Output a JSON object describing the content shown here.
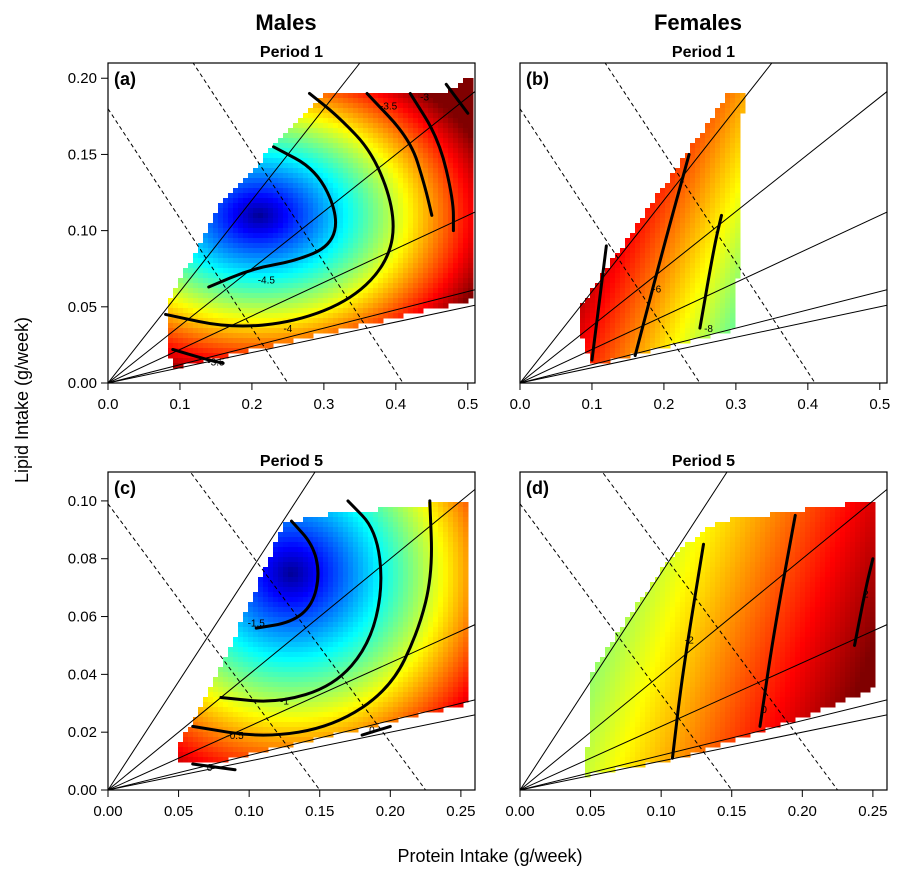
{
  "figure": {
    "column_titles": [
      "Males",
      "Females"
    ],
    "xlabel": "Protein Intake (g/week)",
    "ylabel": "Lipid Intake (g/week)"
  },
  "colors": {
    "scale_low": "#00007f",
    "scale_mid_1": "#0080ff",
    "scale_mid_2": "#7fff7f",
    "scale_mid_3": "#ff8000",
    "scale_high": "#7f0000"
  },
  "chart_data": [
    {
      "type": "heatmap",
      "id": "a",
      "letter": "(a)",
      "title": "Period 1",
      "column": "Males",
      "xlim": [
        0,
        0.51
      ],
      "ylim": [
        0,
        0.21
      ],
      "xticks": [
        "0.0",
        "0.1",
        "0.2",
        "0.3",
        "0.4",
        "0.5"
      ],
      "yticks": [
        "0.00",
        "0.05",
        "0.10",
        "0.15",
        "0.20"
      ],
      "show_xticks": true,
      "show_yticks": true,
      "ray_slopes": [
        0.6,
        0.375,
        0.22,
        0.12,
        0.1
      ],
      "iso_totals": [
        0.25,
        0.41
      ],
      "region": [
        [
          0.08,
          0.035
        ],
        [
          0.08,
          0.05
        ],
        [
          0.16,
          0.12
        ],
        [
          0.3,
          0.19
        ],
        [
          0.47,
          0.19
        ],
        [
          0.5,
          0.2
        ],
        [
          0.51,
          0.2
        ],
        [
          0.51,
          0.055
        ],
        [
          0.09,
          0.01
        ]
      ],
      "surface": {
        "center": [
          0.21,
          0.11
        ],
        "sx": 0.3,
        "sy": 0.1,
        "t_center": 0.02,
        "t_scale": 0.88
      },
      "contours": [
        {
          "label": "-4.5",
          "points": [
            [
              0.14,
              0.063
            ],
            [
              0.2,
              0.075
            ],
            [
              0.26,
              0.08
            ],
            [
              0.31,
              0.09
            ],
            [
              0.32,
              0.11
            ],
            [
              0.29,
              0.14
            ],
            [
              0.23,
              0.155
            ]
          ]
        },
        {
          "label": "-4",
          "points": [
            [
              0.08,
              0.045
            ],
            [
              0.17,
              0.036
            ],
            [
              0.26,
              0.04
            ],
            [
              0.34,
              0.055
            ],
            [
              0.39,
              0.08
            ],
            [
              0.4,
              0.11
            ],
            [
              0.37,
              0.15
            ],
            [
              0.32,
              0.175
            ],
            [
              0.28,
              0.19
            ]
          ]
        },
        {
          "label": "-3.5",
          "points": [
            [
              0.09,
              0.022
            ],
            [
              0.14,
              0.015
            ],
            [
              0.16,
              0.013
            ]
          ]
        },
        {
          "label": "-3.5",
          "points": [
            [
              0.36,
              0.19
            ],
            [
              0.42,
              0.16
            ],
            [
              0.44,
              0.13
            ],
            [
              0.45,
              0.11
            ]
          ]
        },
        {
          "label": "-3",
          "points": [
            [
              0.42,
              0.19
            ],
            [
              0.46,
              0.16
            ],
            [
              0.48,
              0.12
            ],
            [
              0.48,
              0.1
            ]
          ]
        },
        {
          "label": "",
          "points": [
            [
              0.47,
              0.196
            ],
            [
              0.5,
              0.177
            ]
          ]
        }
      ],
      "contour_labels": [
        {
          "text": "-4.5",
          "x": 0.22,
          "y": 0.068
        },
        {
          "text": "-4",
          "x": 0.25,
          "y": 0.036
        },
        {
          "text": "-3.5",
          "x": 0.15,
          "y": 0.014
        },
        {
          "text": "-3.5",
          "x": 0.39,
          "y": 0.182
        },
        {
          "text": "-3",
          "x": 0.44,
          "y": 0.188
        }
      ]
    },
    {
      "type": "heatmap",
      "id": "b",
      "letter": "(b)",
      "title": "Period 1",
      "column": "Females",
      "xlim": [
        0,
        0.51
      ],
      "ylim": [
        0,
        0.21
      ],
      "xticks": [
        "0.0",
        "0.1",
        "0.2",
        "0.3",
        "0.4",
        "0.5"
      ],
      "yticks": [
        "0.00",
        "0.05",
        "0.10",
        "0.15",
        "0.20"
      ],
      "show_xticks": true,
      "show_yticks": false,
      "ray_slopes": [
        0.6,
        0.375,
        0.22,
        0.12,
        0.1
      ],
      "iso_totals": [
        0.25,
        0.41
      ],
      "region": [
        [
          0.08,
          0.038
        ],
        [
          0.08,
          0.048
        ],
        [
          0.29,
          0.19
        ],
        [
          0.31,
          0.19
        ],
        [
          0.3,
          0.035
        ],
        [
          0.1,
          0.012
        ]
      ],
      "surface": {
        "linear": true,
        "gx": -1,
        "gy": 0.35,
        "origin": [
          0.3,
          0.05
        ],
        "span": 0.25
      },
      "contours": [
        {
          "label": "",
          "points": [
            [
              0.1,
              0.015
            ],
            [
              0.12,
              0.09
            ]
          ]
        },
        {
          "label": "-6",
          "points": [
            [
              0.16,
              0.018
            ],
            [
              0.2,
              0.09
            ],
            [
              0.235,
              0.15
            ]
          ]
        },
        {
          "label": "-8",
          "points": [
            [
              0.25,
              0.036
            ],
            [
              0.27,
              0.09
            ],
            [
              0.28,
              0.11
            ]
          ]
        }
      ],
      "contour_labels": [
        {
          "text": "-6",
          "x": 0.19,
          "y": 0.062
        },
        {
          "text": "-8",
          "x": 0.262,
          "y": 0.036
        }
      ]
    },
    {
      "type": "heatmap",
      "id": "c",
      "letter": "(c)",
      "title": "Period 5",
      "column": "Males",
      "xlim": [
        0,
        0.26
      ],
      "ylim": [
        0,
        0.11
      ],
      "xticks": [
        "0.00",
        "0.05",
        "0.10",
        "0.15",
        "0.20",
        "0.25"
      ],
      "yticks": [
        "0.00",
        "0.02",
        "0.04",
        "0.06",
        "0.08",
        "0.10"
      ],
      "show_xticks": true,
      "show_yticks": true,
      "ray_slopes": [
        0.75,
        0.4,
        0.22,
        0.12,
        0.1
      ],
      "iso_totals": [
        0.15,
        0.225
      ],
      "region": [
        [
          0.05,
          0.01
        ],
        [
          0.05,
          0.015
        ],
        [
          0.08,
          0.042
        ],
        [
          0.125,
          0.092
        ],
        [
          0.15,
          0.095
        ],
        [
          0.25,
          0.1
        ],
        [
          0.255,
          0.1
        ],
        [
          0.255,
          0.03
        ],
        [
          0.08,
          0.01
        ]
      ],
      "surface": {
        "center": [
          0.13,
          0.075
        ],
        "sx": 0.16,
        "sy": 0.075,
        "t_center": 0.02,
        "t_scale": 0.9
      },
      "contours": [
        {
          "label": "-1.5",
          "points": [
            [
              0.105,
              0.056
            ],
            [
              0.13,
              0.058
            ],
            [
              0.145,
              0.064
            ],
            [
              0.15,
              0.075
            ],
            [
              0.145,
              0.085
            ],
            [
              0.13,
              0.093
            ]
          ]
        },
        {
          "label": "-1",
          "points": [
            [
              0.08,
              0.032
            ],
            [
              0.12,
              0.03
            ],
            [
              0.16,
              0.036
            ],
            [
              0.185,
              0.05
            ],
            [
              0.195,
              0.07
            ],
            [
              0.19,
              0.09
            ],
            [
              0.17,
              0.1
            ]
          ]
        },
        {
          "label": "-0.5",
          "points": [
            [
              0.06,
              0.022
            ],
            [
              0.11,
              0.018
            ],
            [
              0.16,
              0.022
            ],
            [
              0.2,
              0.035
            ],
            [
              0.22,
              0.055
            ],
            [
              0.23,
              0.075
            ],
            [
              0.228,
              0.1
            ]
          ]
        },
        {
          "label": "0",
          "points": [
            [
              0.06,
              0.009
            ],
            [
              0.09,
              0.007
            ]
          ]
        },
        {
          "label": "",
          "points": [
            [
              0.18,
              0.019
            ],
            [
              0.2,
              0.022
            ]
          ]
        }
      ],
      "contour_labels": [
        {
          "text": "-1.5",
          "x": 0.105,
          "y": 0.058
        },
        {
          "text": "-1",
          "x": 0.125,
          "y": 0.031
        },
        {
          "text": "-0.5",
          "x": 0.09,
          "y": 0.019
        },
        {
          "text": "0",
          "x": 0.072,
          "y": 0.008
        },
        {
          "text": "0",
          "x": 0.187,
          "y": 0.021
        }
      ]
    },
    {
      "type": "heatmap",
      "id": "d",
      "letter": "(d)",
      "title": "Period 5",
      "column": "Females",
      "xlim": [
        0,
        0.26
      ],
      "ylim": [
        0,
        0.11
      ],
      "xticks": [
        "0.00",
        "0.05",
        "0.10",
        "0.15",
        "0.20",
        "0.25"
      ],
      "yticks": [
        "0.00",
        "0.02",
        "0.04",
        "0.06",
        "0.08",
        "0.10"
      ],
      "show_xticks": true,
      "show_yticks": false,
      "ray_slopes": [
        0.75,
        0.4,
        0.22,
        0.12,
        0.1
      ],
      "iso_totals": [
        0.15,
        0.225
      ],
      "region": [
        [
          0.047,
          0.005
        ],
        [
          0.05,
          0.04
        ],
        [
          0.105,
          0.08
        ],
        [
          0.14,
          0.093
        ],
        [
          0.25,
          0.1
        ],
        [
          0.25,
          0.035
        ],
        [
          0.2,
          0.025
        ],
        [
          0.12,
          0.012
        ]
      ],
      "surface": {
        "linear": true,
        "gx": 1,
        "gy": -0.3,
        "origin": [
          0.05,
          0.05
        ],
        "span": 0.2
      },
      "contours": [
        {
          "label": "-2",
          "points": [
            [
              0.108,
              0.011
            ],
            [
              0.115,
              0.04
            ],
            [
              0.13,
              0.085
            ]
          ]
        },
        {
          "label": "0",
          "points": [
            [
              0.17,
              0.022
            ],
            [
              0.18,
              0.055
            ],
            [
              0.195,
              0.095
            ]
          ]
        },
        {
          "label": "2",
          "points": [
            [
              0.237,
              0.05
            ],
            [
              0.245,
              0.07
            ],
            [
              0.25,
              0.08
            ]
          ]
        }
      ],
      "contour_labels": [
        {
          "text": "-2",
          "x": 0.12,
          "y": 0.052
        },
        {
          "text": "0",
          "x": 0.173,
          "y": 0.028
        },
        {
          "text": "2",
          "x": 0.245,
          "y": 0.068
        }
      ]
    }
  ]
}
